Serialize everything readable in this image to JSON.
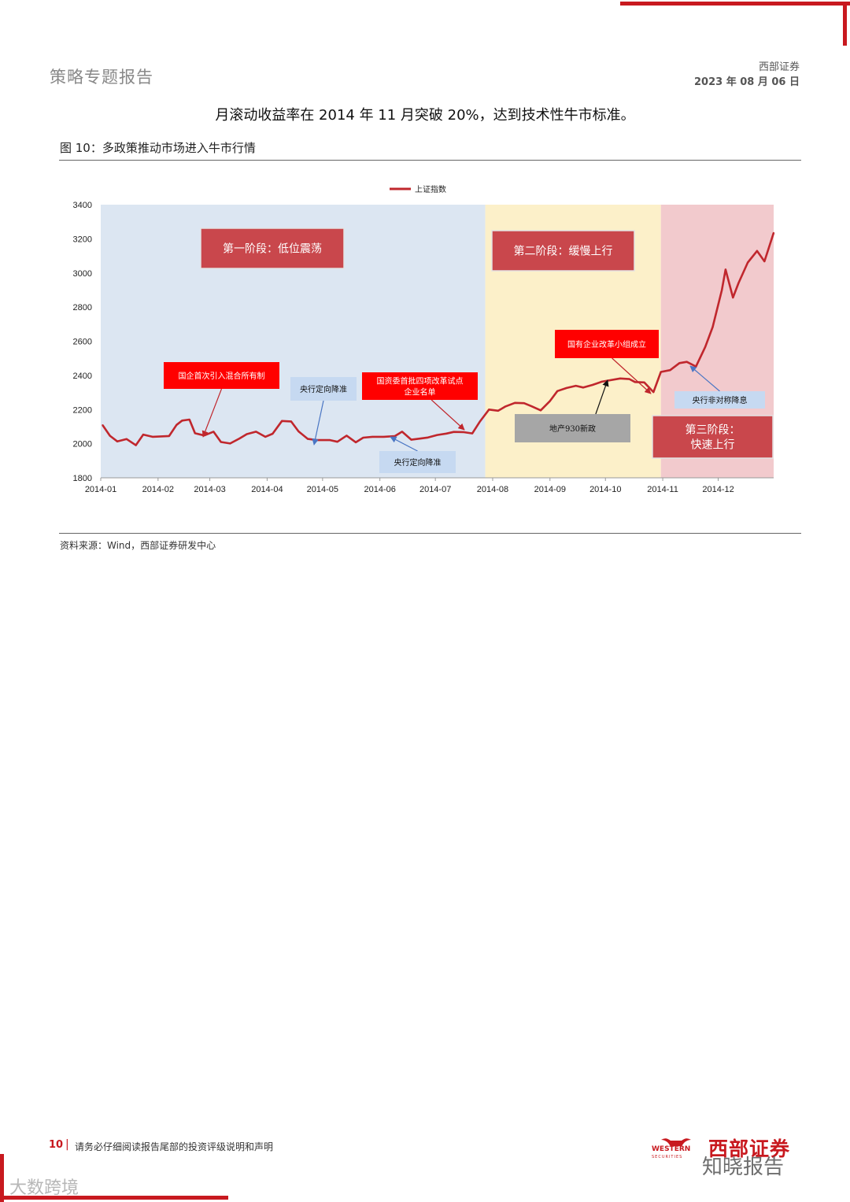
{
  "header": {
    "report_type": "策略专题报告",
    "company": "西部证券",
    "date": "2023 年 08 月 06 日"
  },
  "body_text": "月滚动收益率在 2014 年 11 月突破 20%，达到技术性牛市标准。",
  "figure": {
    "title": "图 10：多政策推动市场进入牛市行情",
    "source": "资料来源：Wind，西部证券研发中心"
  },
  "chart_data": {
    "type": "line",
    "title": "",
    "legend": "上证指数",
    "legend_position": "top-center",
    "xlabel": "",
    "ylabel": "",
    "ylim": [
      1800,
      3400
    ],
    "yticks": [
      1800,
      2000,
      2200,
      2400,
      2600,
      2800,
      3000,
      3200,
      3400
    ],
    "xticks": [
      "2014-01",
      "2014-02",
      "2014-03",
      "2014-04",
      "2014-05",
      "2014-06",
      "2014-07",
      "2014-08",
      "2014-09",
      "2014-10",
      "2014-11",
      "2014-12"
    ],
    "grid": false,
    "line_color": "#c0272d",
    "series": [
      {
        "name": "上证指数",
        "x": [
          "2014-01-02",
          "2014-01-06",
          "2014-01-10",
          "2014-01-15",
          "2014-01-20",
          "2014-01-24",
          "2014-01-29",
          "2014-02-07",
          "2014-02-11",
          "2014-02-14",
          "2014-02-18",
          "2014-02-21",
          "2014-02-26",
          "2014-03-03",
          "2014-03-07",
          "2014-03-12",
          "2014-03-17",
          "2014-03-21",
          "2014-03-26",
          "2014-03-31",
          "2014-04-04",
          "2014-04-09",
          "2014-04-14",
          "2014-04-18",
          "2014-04-23",
          "2014-04-28",
          "2014-05-05",
          "2014-05-09",
          "2014-05-14",
          "2014-05-19",
          "2014-05-23",
          "2014-05-28",
          "2014-06-03",
          "2014-06-09",
          "2014-06-13",
          "2014-06-18",
          "2014-06-23",
          "2014-06-27",
          "2014-07-02",
          "2014-07-07",
          "2014-07-11",
          "2014-07-16",
          "2014-07-21",
          "2014-07-25",
          "2014-07-30",
          "2014-08-04",
          "2014-08-08",
          "2014-08-13",
          "2014-08-18",
          "2014-08-22",
          "2014-08-27",
          "2014-09-01",
          "2014-09-05",
          "2014-09-10",
          "2014-09-15",
          "2014-09-19",
          "2014-09-24",
          "2014-09-29",
          "2014-10-09",
          "2014-10-14",
          "2014-10-17",
          "2014-10-22",
          "2014-10-27",
          "2014-10-31",
          "2014-11-05",
          "2014-11-10",
          "2014-11-14",
          "2014-11-19",
          "2014-11-24",
          "2014-11-28",
          "2014-12-03",
          "2014-12-05",
          "2014-12-09",
          "2014-12-12",
          "2014-12-17",
          "2014-12-22",
          "2014-12-26",
          "2014-12-31"
        ],
        "values": [
          2109,
          2046,
          2013,
          2027,
          1991,
          2053,
          2040,
          2045,
          2110,
          2135,
          2141,
          2061,
          2048,
          2070,
          2010,
          2001,
          2030,
          2056,
          2070,
          2040,
          2058,
          2133,
          2130,
          2072,
          2028,
          2021,
          2021,
          2011,
          2047,
          2008,
          2035,
          2040,
          2040,
          2044,
          2070,
          2023,
          2030,
          2036,
          2051,
          2059,
          2069,
          2068,
          2060,
          2128,
          2200,
          2193,
          2218,
          2239,
          2237,
          2219,
          2195,
          2250,
          2308,
          2326,
          2339,
          2329,
          2344,
          2363,
          2382,
          2378,
          2361,
          2359,
          2302,
          2420,
          2431,
          2472,
          2479,
          2452,
          2567,
          2683,
          2900,
          3020,
          2856,
          2941,
          3061,
          3129,
          3068,
          3235
        ]
      }
    ],
    "phases": [
      {
        "label": "第一阶段：低位震荡",
        "start": "2014-01-01",
        "end": "2014-07-28",
        "color": "#dce6f2"
      },
      {
        "label": "第二阶段：缓慢上行",
        "start": "2014-07-28",
        "end": "2014-10-31",
        "color": "#fcf0c9"
      },
      {
        "label": "第三阶段：快速上行",
        "start": "2014-10-31",
        "end": "2014-12-31",
        "color": "#f2cacd"
      }
    ],
    "annotations": [
      {
        "text": "国企首次引入混合所有制",
        "date": "2014-02-19",
        "style": "red"
      },
      {
        "text": "央行定向降准",
        "date": "2014-04-25",
        "style": "blue"
      },
      {
        "text": "央行定向降准",
        "date": "2014-06-16",
        "style": "blue"
      },
      {
        "text": "国资委首批四项改革试点企业名单",
        "date": "2014-07-15",
        "style": "red"
      },
      {
        "text": "地产930新政",
        "date": "2014-09-30",
        "style": "gray"
      },
      {
        "text": "国有企业改革小组成立",
        "date": "2014-10-27",
        "style": "red"
      },
      {
        "text": "央行非对称降息",
        "date": "2014-11-21",
        "style": "blue"
      }
    ]
  },
  "footer": {
    "page": "10",
    "separator": "|",
    "disclaimer": "请务必仔细阅读报告尾部的投资评级说明和声明",
    "logo_en": "WESTERN",
    "logo_en_sub": "SECURITIES",
    "logo_cn": "西部证券",
    "watermark_right": "知晓报告",
    "watermark_left": "大数跨境"
  }
}
